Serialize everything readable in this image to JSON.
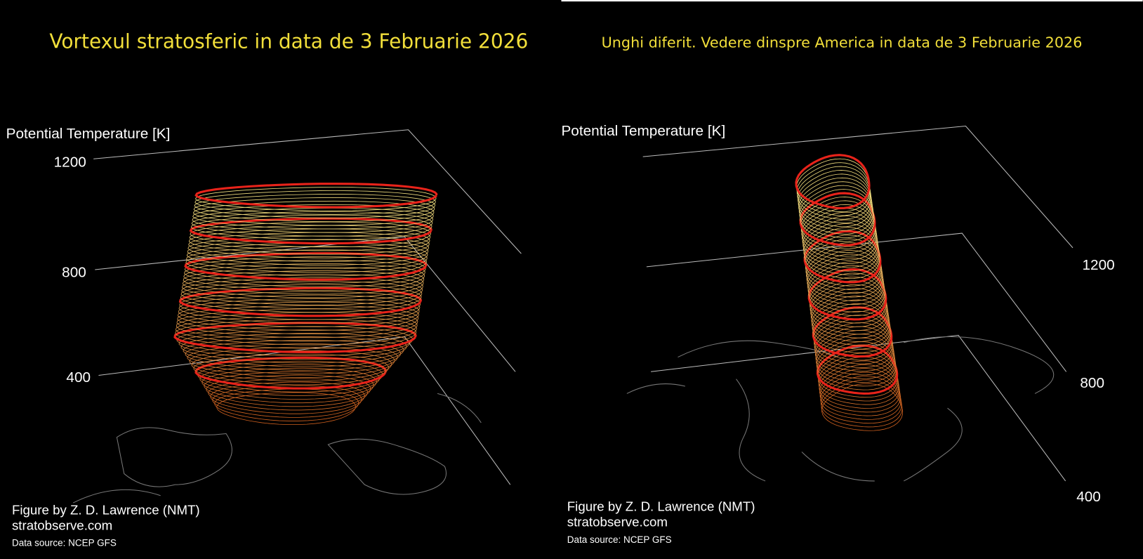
{
  "panels": [
    {
      "title": "Vortexul stratosferic in data de 3 Februarie 2026",
      "axis_label": "Potential Temperature [K]",
      "ticks": [
        "1200",
        "800",
        "400"
      ],
      "credits": [
        "Figure by Z. D. Lawrence (NMT)",
        "stratobserve.com",
        "Data source: NCEP GFS"
      ]
    },
    {
      "title": "Unghi diferit. Vedere dinspre America in data de 3 Februarie 2026",
      "axis_label": "Potential Temperature [K]",
      "ticks": [
        "1200",
        "800",
        "400"
      ],
      "credits": [
        "Figure by Z. D. Lawrence (NMT)",
        "stratobserve.com",
        "Data source: NCEP GFS"
      ]
    }
  ]
}
